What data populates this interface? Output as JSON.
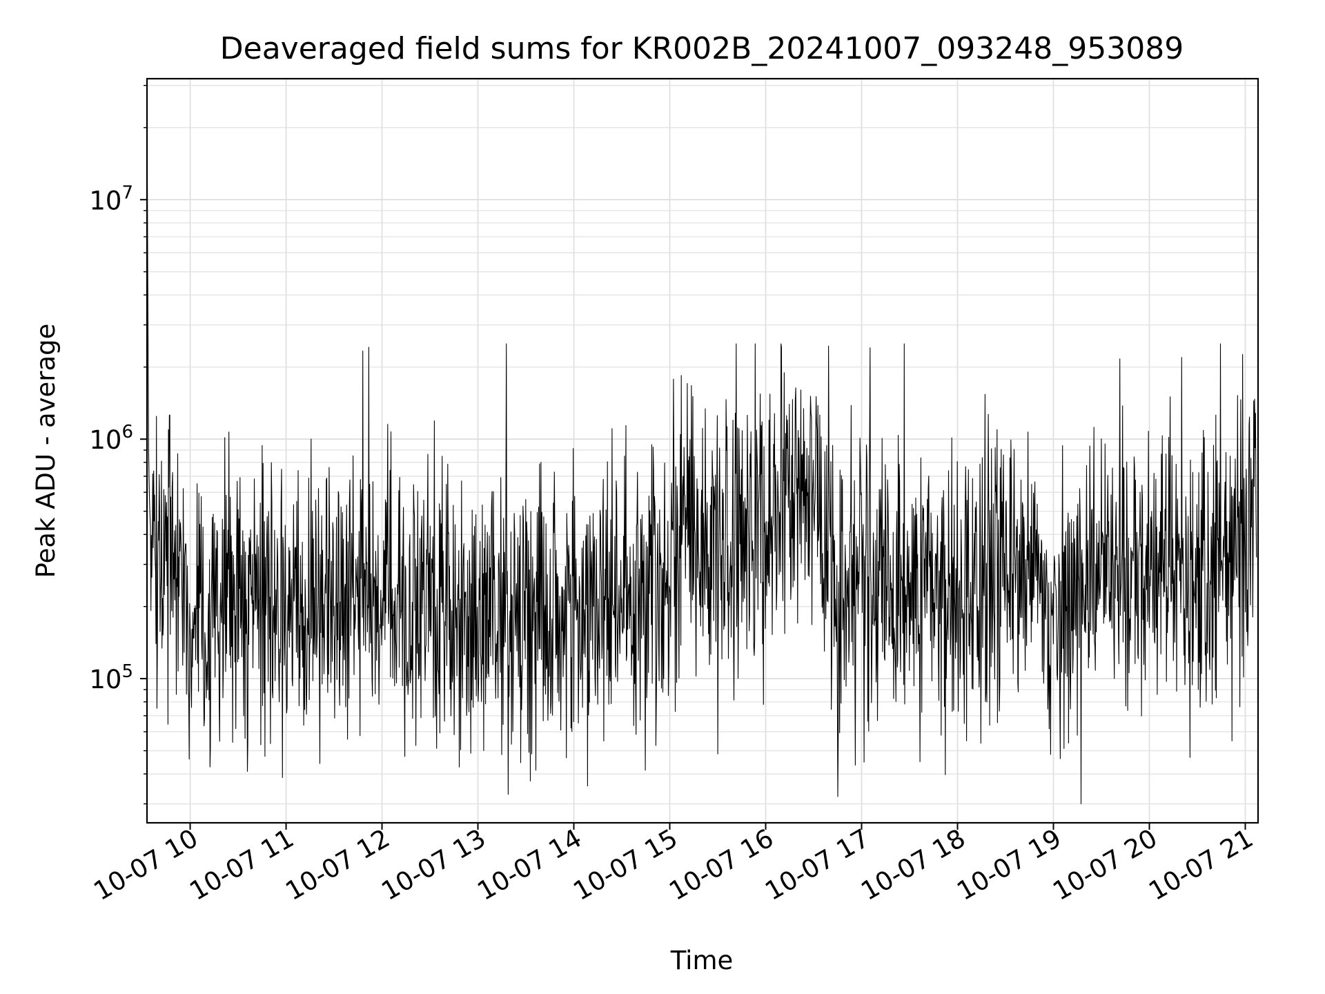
{
  "chart_data": {
    "type": "line",
    "title": "Deaveraged field sums for KR002B_20241007_093248_953089",
    "xlabel": "Time",
    "ylabel": "Peak ADU - average",
    "yscale": "log",
    "ylim": [
      25000,
      32000000
    ],
    "xlim": [
      "2024-10-07 09:33",
      "2024-10-07 21:08"
    ],
    "grid": true,
    "grid_minor": true,
    "line_color": "#000000",
    "x_ticks": [
      "10-07 10",
      "10-07 11",
      "10-07 12",
      "10-07 13",
      "10-07 14",
      "10-07 15",
      "10-07 16",
      "10-07 17",
      "10-07 18",
      "10-07 19",
      "10-07 20",
      "10-07 21"
    ],
    "y_ticks": [
      {
        "value": 100000,
        "base": "10",
        "exp": "5"
      },
      {
        "value": 1000000,
        "base": "10",
        "exp": "6"
      },
      {
        "value": 10000000,
        "base": "10",
        "exp": "7"
      }
    ],
    "series": [
      {
        "x": [
          "2024-10-07 09:33",
          "2024-10-07 09:34",
          "2024-10-07 09:40",
          "2024-10-07 09:50",
          "2024-10-07 10:00",
          "2024-10-07 10:15",
          "2024-10-07 10:26",
          "2024-10-07 10:40",
          "2024-10-07 11:00",
          "2024-10-07 11:20",
          "2024-10-07 11:40",
          "2024-10-07 12:00",
          "2024-10-07 12:20",
          "2024-10-07 12:40",
          "2024-10-07 13:00",
          "2024-10-07 13:20",
          "2024-10-07 13:40",
          "2024-10-07 14:00",
          "2024-10-07 14:20",
          "2024-10-07 14:40",
          "2024-10-07 15:00",
          "2024-10-07 15:10",
          "2024-10-07 15:25",
          "2024-10-07 15:40",
          "2024-10-07 15:55",
          "2024-10-07 16:10",
          "2024-10-07 16:20",
          "2024-10-07 16:30",
          "2024-10-07 16:45",
          "2024-10-07 17:00",
          "2024-10-07 17:20",
          "2024-10-07 17:40",
          "2024-10-07 18:00",
          "2024-10-07 18:20",
          "2024-10-07 18:35",
          "2024-10-07 18:50",
          "2024-10-07 19:00",
          "2024-10-07 19:20",
          "2024-10-07 19:40",
          "2024-10-07 20:00",
          "2024-10-07 20:20",
          "2024-10-07 20:40",
          "2024-10-07 20:50",
          "2024-10-07 21:00",
          "2024-10-07 21:07"
        ],
        "y": [
          23000000,
          350000,
          400000,
          250000,
          160000,
          200000,
          220000,
          190000,
          190000,
          200000,
          200000,
          220000,
          210000,
          200000,
          190000,
          200000,
          190000,
          190000,
          210000,
          220000,
          250000,
          420000,
          360000,
          300000,
          370000,
          500000,
          600000,
          550000,
          260000,
          230000,
          240000,
          230000,
          230000,
          240000,
          360000,
          260000,
          180000,
          280000,
          300000,
          280000,
          260000,
          270000,
          300000,
          470000,
          500000
        ]
      }
    ]
  }
}
